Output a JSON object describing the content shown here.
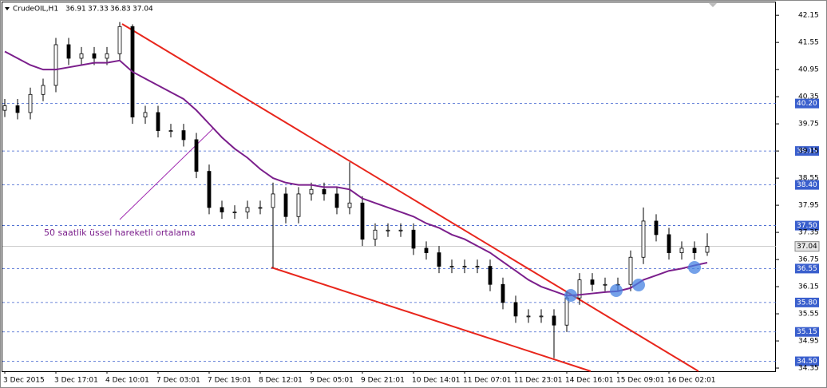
{
  "chart_data": {
    "type": "candlestick",
    "symbol": "CrudeOIL,H1",
    "header_values": [
      36.91,
      37.33,
      36.83,
      37.04
    ],
    "annotation": "50 saatlik üssel hareketli ortalama",
    "categories": [
      "3 Dec 2015",
      null,
      null,
      null,
      "3 Dec 17:01",
      null,
      null,
      null,
      "4 Dec 10:01",
      null,
      null,
      null,
      "7 Dec 03:01",
      null,
      null,
      null,
      "7 Dec 19:01",
      null,
      null,
      null,
      "8 Dec 12:01",
      null,
      null,
      null,
      "9 Dec 05:01",
      null,
      null,
      null,
      "9 Dec 21:01",
      null,
      null,
      null,
      "10 Dec 14:01",
      null,
      null,
      null,
      "11 Dec 07:01",
      null,
      null,
      null,
      "11 Dec 23:01",
      null,
      null,
      null,
      "14 Dec 16:01",
      null,
      null,
      null,
      "15 Dec 09:01",
      null,
      null,
      null,
      "16 Dec 02:01",
      null,
      null,
      null
    ],
    "open": [
      40.05,
      40.15,
      40.0,
      40.4,
      40.6,
      41.5,
      41.2,
      41.3,
      41.2,
      41.3,
      41.9,
      39.9,
      40.0,
      39.6,
      39.6,
      39.4,
      38.7,
      37.9,
      37.8,
      37.8,
      37.9,
      37.9,
      38.2,
      37.7,
      38.2,
      38.3,
      38.2,
      37.9,
      38.0,
      37.2,
      37.4,
      37.4,
      37.4,
      37.0,
      36.9,
      36.6,
      36.6,
      36.6,
      36.6,
      36.2,
      35.8,
      35.5,
      35.5,
      35.5,
      35.3,
      35.9,
      36.3,
      36.2,
      36.2,
      36.2,
      36.8,
      37.6,
      37.3,
      36.9,
      37.0,
      36.91
    ],
    "high": [
      40.3,
      40.3,
      40.55,
      40.75,
      41.65,
      41.65,
      41.45,
      41.45,
      41.45,
      42.0,
      41.95,
      40.15,
      40.15,
      39.75,
      39.75,
      39.55,
      38.85,
      38.05,
      37.95,
      38.05,
      38.05,
      38.45,
      38.35,
      38.35,
      38.45,
      38.45,
      38.35,
      38.9,
      38.15,
      37.55,
      37.55,
      37.55,
      37.55,
      37.15,
      37.05,
      36.75,
      36.75,
      36.75,
      36.75,
      36.35,
      35.95,
      35.65,
      35.65,
      35.65,
      36.05,
      36.45,
      36.45,
      36.35,
      36.35,
      36.95,
      37.9,
      37.75,
      37.45,
      37.15,
      37.15,
      37.33
    ],
    "low": [
      39.9,
      39.85,
      39.85,
      40.25,
      40.45,
      41.05,
      41.05,
      41.05,
      41.05,
      41.15,
      39.75,
      39.75,
      39.45,
      39.45,
      39.25,
      38.55,
      37.75,
      37.65,
      37.65,
      37.65,
      37.75,
      36.57,
      37.55,
      37.55,
      38.05,
      38.05,
      37.75,
      37.75,
      37.05,
      37.05,
      37.25,
      37.25,
      36.85,
      36.75,
      36.45,
      36.45,
      36.45,
      36.45,
      36.05,
      35.65,
      35.35,
      35.35,
      35.35,
      34.57,
      35.15,
      35.75,
      36.05,
      36.05,
      36.05,
      36.05,
      36.65,
      37.15,
      36.75,
      36.75,
      36.75,
      36.83
    ],
    "close": [
      40.15,
      40.0,
      40.4,
      40.6,
      41.5,
      41.2,
      41.3,
      41.2,
      41.3,
      41.9,
      39.9,
      40.0,
      39.6,
      39.6,
      39.4,
      38.7,
      37.9,
      37.8,
      37.8,
      37.9,
      37.9,
      38.2,
      37.7,
      38.2,
      38.3,
      38.2,
      37.9,
      38.0,
      37.2,
      37.4,
      37.4,
      37.4,
      37.0,
      36.9,
      36.6,
      36.6,
      36.6,
      36.6,
      36.2,
      35.8,
      35.5,
      35.5,
      35.5,
      35.3,
      35.9,
      36.3,
      36.2,
      36.2,
      36.2,
      36.8,
      37.6,
      37.3,
      36.9,
      37.0,
      36.9,
      37.04
    ],
    "ema": {
      "color": "#7b1f8c",
      "values": [
        41.35,
        41.2,
        41.05,
        40.95,
        40.95,
        41.0,
        41.05,
        41.1,
        41.1,
        41.15,
        40.9,
        40.75,
        40.6,
        40.45,
        40.3,
        40.05,
        39.75,
        39.45,
        39.2,
        39.0,
        38.75,
        38.55,
        38.45,
        38.4,
        38.4,
        38.35,
        38.35,
        38.3,
        38.1,
        38.0,
        37.9,
        37.8,
        37.7,
        37.55,
        37.45,
        37.3,
        37.2,
        37.05,
        36.9,
        36.7,
        36.5,
        36.3,
        36.15,
        36.05,
        35.95,
        35.97,
        36.0,
        36.03,
        36.05,
        36.12,
        36.3,
        36.4,
        36.5,
        36.55,
        36.62,
        36.68
      ]
    },
    "ylim": [
      34.28,
      42.4
    ],
    "yticks": [
      42.15,
      41.55,
      40.95,
      40.35,
      39.75,
      39.15,
      38.55,
      37.95,
      37.35,
      36.75,
      36.15,
      35.55,
      34.95,
      34.35
    ],
    "levels": [
      {
        "value": 40.2,
        "label": "40.20"
      },
      39.15,
      {
        "value": 38.4,
        "label": "38.40"
      },
      {
        "value": 37.5,
        "label": "37.50"
      },
      36.55,
      {
        "value": 35.8,
        "label": "35.80"
      },
      35.15,
      {
        "value": 34.5,
        "label": "34.50"
      }
    ],
    "level_color": "#3a5fcd",
    "current_price": 37.04
  }
}
